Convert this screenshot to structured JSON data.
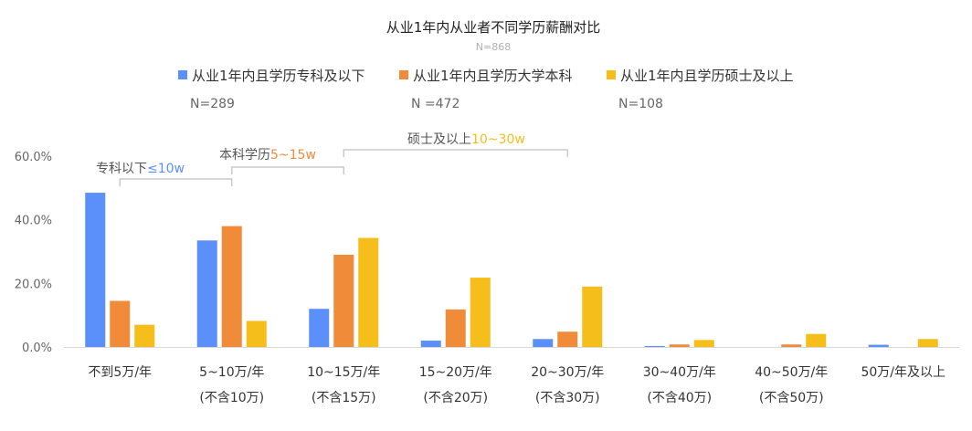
{
  "chart_data": {
    "type": "bar",
    "title": "从业1年内从业者不同学历薪酬对比",
    "subtitle": "N=868",
    "ylim": [
      0,
      60
    ],
    "yticks": [
      "0.0%",
      "20.0%",
      "40.0%",
      "60.0%"
    ],
    "grid": false,
    "legend_position": "top",
    "categories": [
      [
        "不到5万/年",
        ""
      ],
      [
        "5~10万/年",
        "(不含10万)"
      ],
      [
        "10~15万/年",
        "(不含15万)"
      ],
      [
        "15~20万/年",
        "(不含20万)"
      ],
      [
        "20~30万/年",
        "(不含30万)"
      ],
      [
        "30~40万/年",
        "(不含40万)"
      ],
      [
        "40~50万/年",
        "(不含50万)"
      ],
      [
        "50万/年及以上",
        ""
      ]
    ],
    "series": [
      {
        "name": "从业1年内且学历专科及以下",
        "n": "N=289",
        "color": "#5B8FF9",
        "values": [
          48.5,
          33.5,
          12.0,
          2.0,
          2.5,
          0.3,
          0.0,
          0.7
        ]
      },
      {
        "name": "从业1年内且学历大学本科",
        "n": "N =472",
        "color": "#F08B3A",
        "values": [
          14.5,
          38.0,
          29.0,
          11.8,
          4.8,
          0.8,
          0.8,
          0.0
        ]
      },
      {
        "name": "从业1年内且学历硕士及以上",
        "n": "N=108",
        "color": "#F6BE1B",
        "values": [
          7.0,
          8.2,
          34.3,
          21.8,
          19.0,
          2.2,
          4.1,
          2.5
        ]
      }
    ],
    "annotations": [
      {
        "text": "专科以下",
        "highlight": "≤10w",
        "color": "#5B8FF9"
      },
      {
        "text": "本科学历",
        "highlight": "5~15w",
        "color": "#F08B3A"
      },
      {
        "text": "硕士及以上",
        "highlight": "10~30w",
        "color": "#F6BE1B"
      }
    ]
  }
}
